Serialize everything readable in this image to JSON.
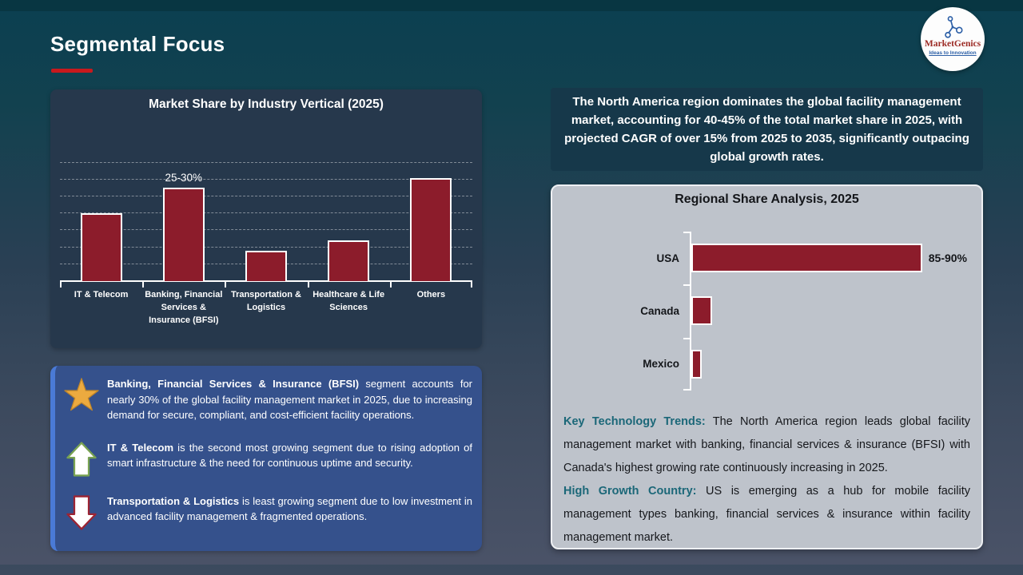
{
  "slide": {
    "title": "Segmental Focus"
  },
  "logo": {
    "brand": "MarketGenics",
    "tagline": "Ideas to Innovation"
  },
  "colors": {
    "accent_red": "#c8191d",
    "bar_maroon": "#8c1c2b",
    "insight_box_blue": "#35518c",
    "insight_stripe_blue": "#4a7ad6",
    "teal_lead": "#1b6778",
    "dark_panel": "#26384c",
    "gray_panel": "#bec3cb",
    "callout_teal": "#16384a",
    "star_gold": "#ecaa3f",
    "arrow_up_green": "#79a352",
    "arrow_down_red": "#9c2433"
  },
  "chart_data": [
    {
      "type": "bar",
      "title": "Market Share by Industry Vertical (2025)",
      "categories": [
        "IT & Telecom",
        "Banking, Financial Services & Insurance (BFSI)",
        "Transportation & Logistics",
        "Healthcare & Life Sciences",
        "Others"
      ],
      "values": [
        20,
        27.5,
        9,
        12,
        30.5
      ],
      "data_labels": [
        "",
        "25-30%",
        "",
        "",
        ""
      ],
      "ylim": [
        0,
        50
      ],
      "xlabel": "",
      "ylabel": "",
      "grid": "horizontal dashed, no value axis labels",
      "legend": "none",
      "note": "only BFSI bar carries an explicit data label; other values estimated from gridlines"
    },
    {
      "type": "bar-horizontal",
      "title": "Regional Share Analysis, 2025",
      "categories": [
        "USA",
        "Canada",
        "Mexico"
      ],
      "values": [
        87.5,
        8,
        4
      ],
      "data_labels": [
        "85-90%",
        "",
        ""
      ],
      "xlim": [
        0,
        100
      ],
      "grid": "off",
      "legend": "none",
      "note": "only USA bar carries an explicit data label; Canada/Mexico estimated from bar lengths"
    }
  ],
  "insight_box": {
    "items": [
      {
        "icon": "star-icon",
        "lead": "Banking, Financial Services & Insurance (BFSI)",
        "text": " segment accounts for nearly 30% of the global facility management market in 2025, due to increasing demand for secure, compliant, and cost-efficient facility operations."
      },
      {
        "icon": "arrow-up-icon",
        "lead": "IT & Telecom",
        "text": " is the second most growing segment due to rising adoption of smart infrastructure & the need for continuous uptime and security."
      },
      {
        "icon": "arrow-down-icon",
        "lead": "Transportation & Logistics",
        "text": " is least growing segment due to low investment in advanced facility management & fragmented operations."
      }
    ]
  },
  "region_callout": "The North America region dominates the global facility management market, accounting for 40-45% of the total market share in 2025, with projected CAGR of over 15% from 2025 to 2035, significantly outpacing global growth rates.",
  "region_notes": [
    {
      "lead": "Key Technology Trends:",
      "text": " The North America region leads global facility management market with banking, financial services & insurance (BFSI) with Canada's highest growing rate continuously increasing in 2025."
    },
    {
      "lead": "High Growth Country:",
      "text": " US is emerging as a hub for mobile facility management types banking, financial services & insurance within facility management market."
    }
  ]
}
